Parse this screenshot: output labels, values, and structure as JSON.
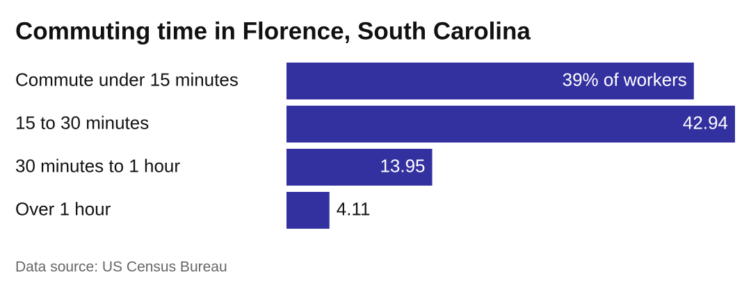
{
  "chart_data": {
    "type": "bar",
    "orientation": "horizontal",
    "title": "Commuting time in Florence, South Carolina",
    "categories": [
      "Commute under 15 minutes",
      "15 to 30 minutes",
      "30 minutes to 1 hour",
      "Over 1 hour"
    ],
    "values": [
      39,
      42.94,
      13.95,
      4.11
    ],
    "value_labels": [
      "39% of workers",
      "42.94",
      "13.95",
      "4.11"
    ],
    "color": "#3330a0",
    "source": "Data source: US Census Bureau"
  }
}
